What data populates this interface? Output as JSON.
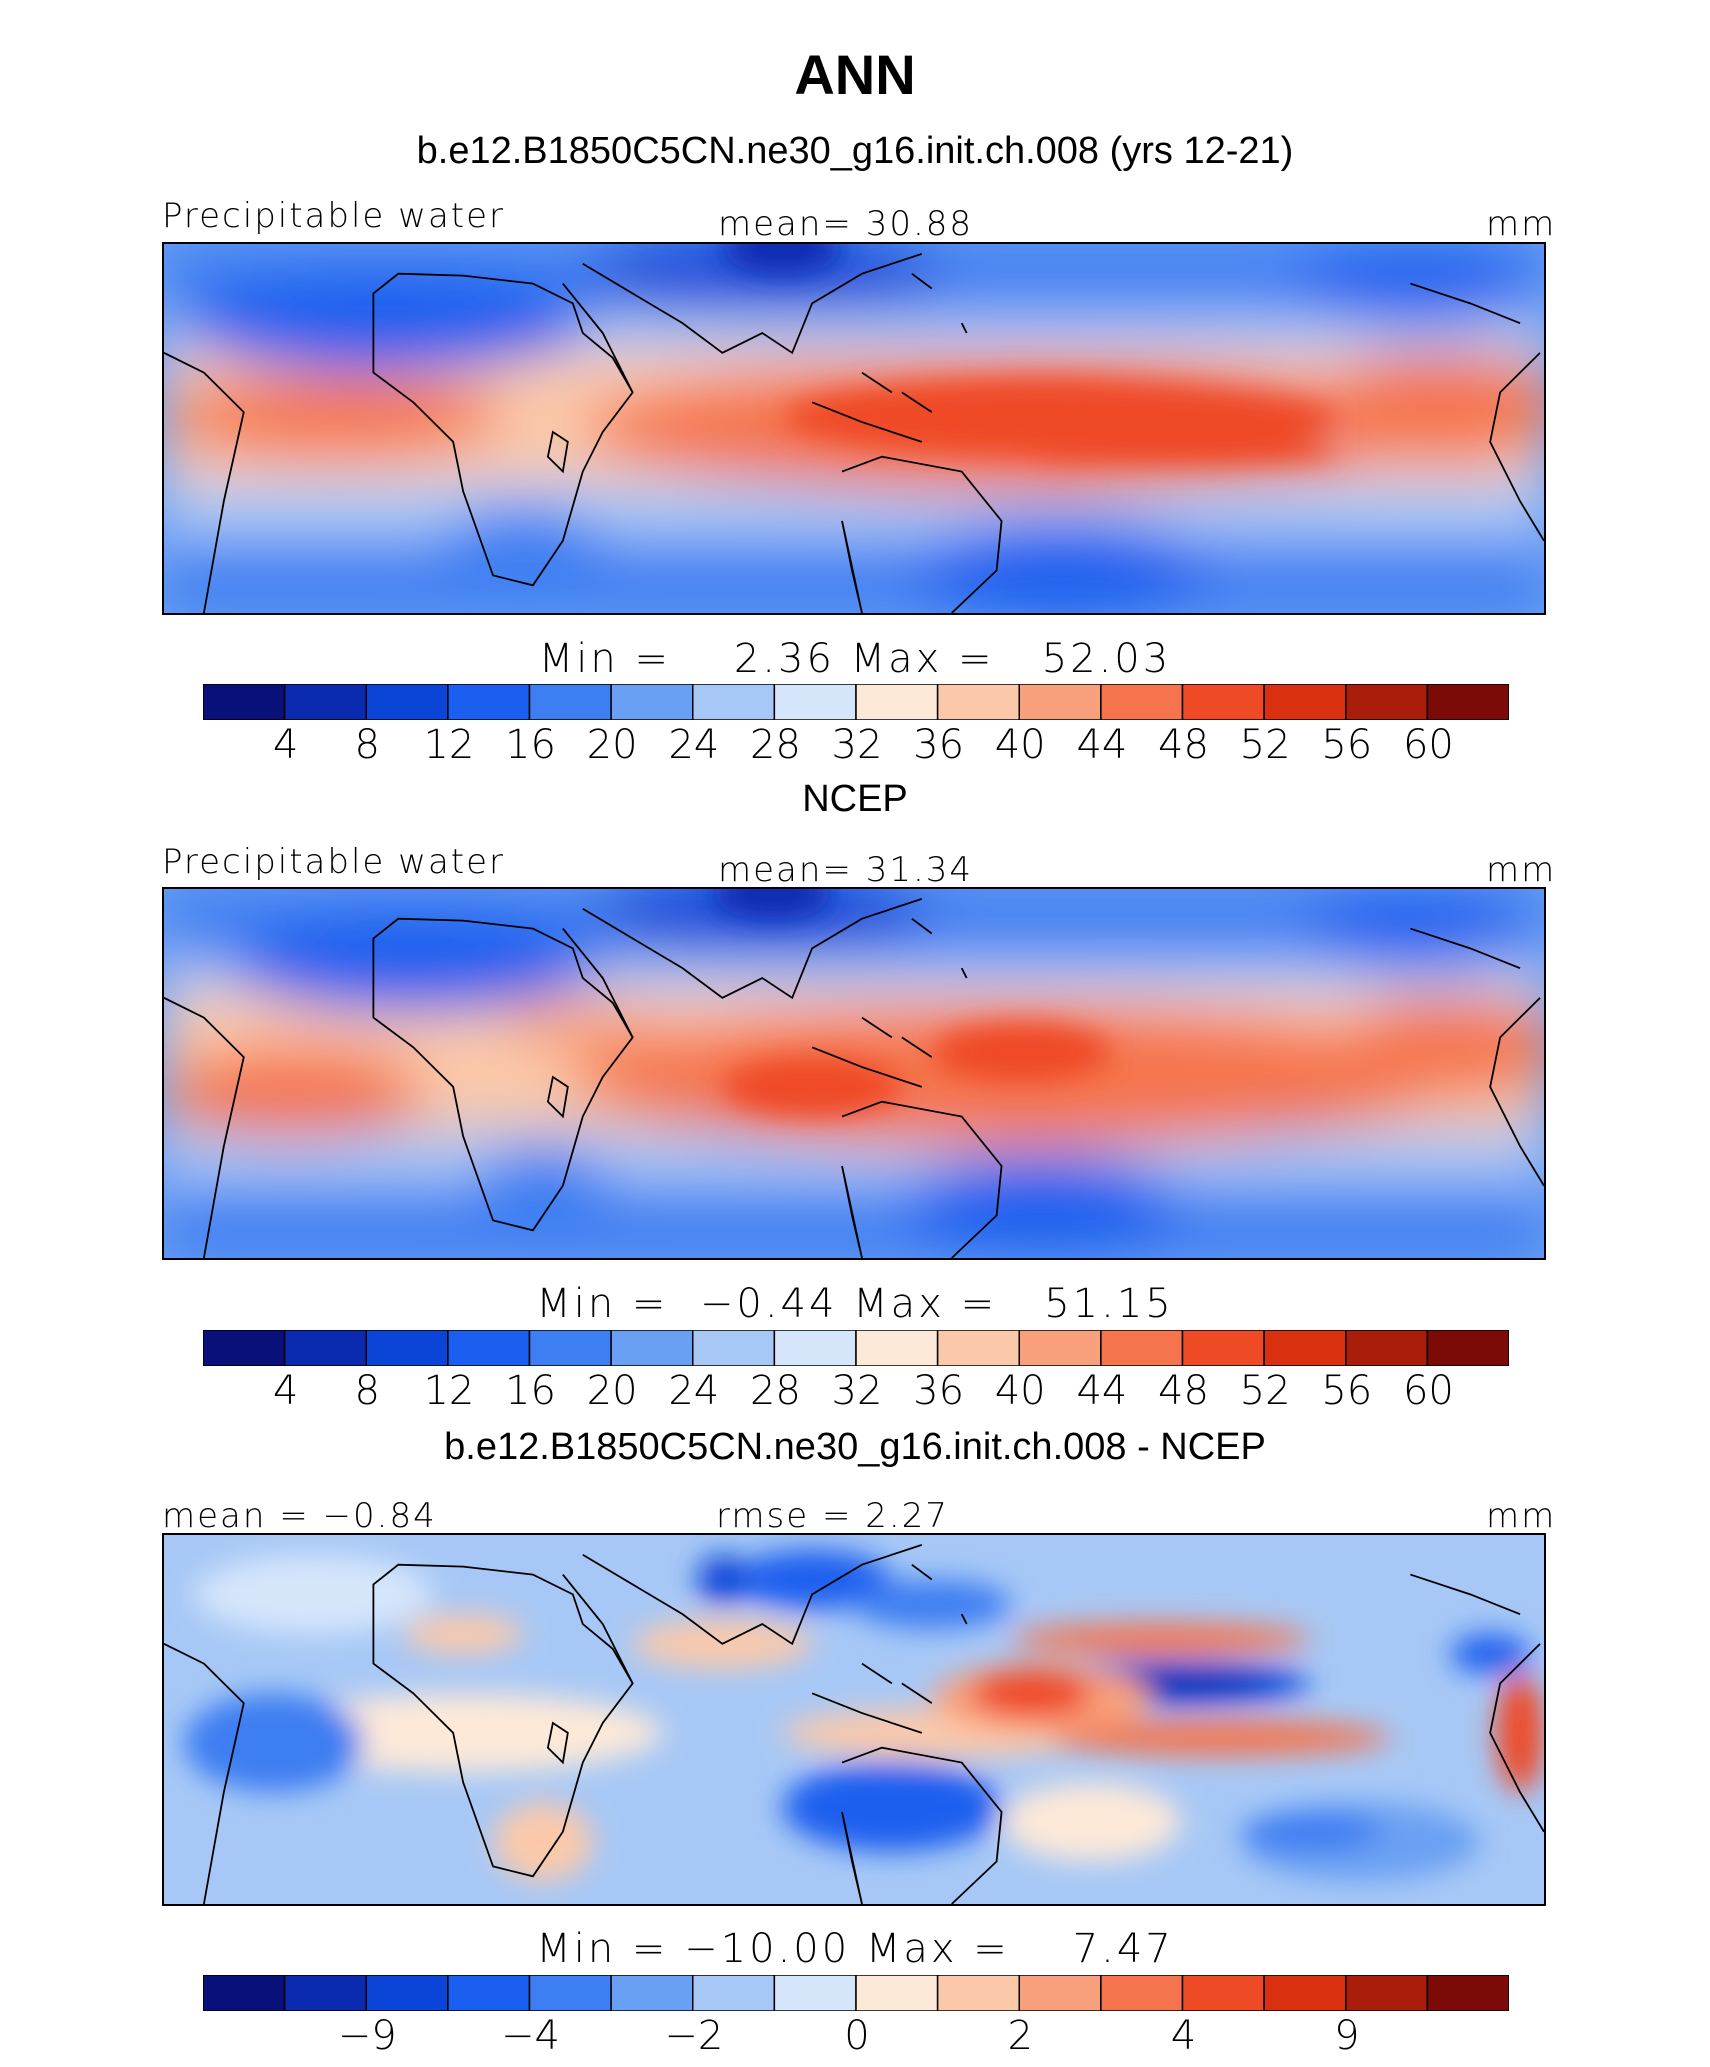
{
  "title": "ANN",
  "panels": [
    {
      "title": "b.e12.B1850C5CN.ne30_g16.init.ch.008 (yrs 12-21)",
      "left_label": "Precipitable water",
      "center_label": "mean=  30.88",
      "units": "mm",
      "minmax": "Min =    2.36 Max =   52.03",
      "colorbar_ticks": [
        "4",
        "8",
        "12",
        "16",
        "20",
        "24",
        "28",
        "32",
        "36",
        "40",
        "44",
        "48",
        "52",
        "56",
        "60"
      ]
    },
    {
      "title": "NCEP",
      "left_label": "Precipitable water",
      "center_label": "mean=  31.34",
      "units": "mm",
      "minmax": "Min =  −0.44 Max =   51.15",
      "colorbar_ticks": [
        "4",
        "8",
        "12",
        "16",
        "20",
        "24",
        "28",
        "32",
        "36",
        "40",
        "44",
        "48",
        "52",
        "56",
        "60"
      ]
    },
    {
      "title": "b.e12.B1850C5CN.ne30_g16.init.ch.008 - NCEP",
      "left_label": "mean =  −0.84",
      "center_label": "rmse =   2.27",
      "units": "mm",
      "minmax": "Min = −10.00 Max =    7.47",
      "colorbar_ticks": [
        "−9",
        "−4",
        "−2",
        "0",
        "2",
        "4",
        "9"
      ]
    }
  ],
  "colors": {
    "palette": [
      "#08107a",
      "#0a2bb0",
      "#0b45d8",
      "#1a5fef",
      "#3d7ef2",
      "#6aa0f3",
      "#a7c8f6",
      "#d5e6fb",
      "#fde9d8",
      "#fbc9aa",
      "#f8a07c",
      "#f5744e",
      "#ef4a26",
      "#d9300f",
      "#a91d0b",
      "#7b0a08"
    ]
  },
  "chart_data": [
    {
      "type": "heatmap",
      "title": "b.e12.B1850C5CN.ne30_g16.init.ch.008 (yrs 12-21)",
      "variable": "Precipitable water",
      "units": "mm",
      "mean": 30.88,
      "min": 2.36,
      "max": 52.03,
      "contour_levels": [
        4,
        8,
        12,
        16,
        20,
        24,
        28,
        32,
        36,
        40,
        44,
        48,
        52,
        56,
        60
      ]
    },
    {
      "type": "heatmap",
      "title": "NCEP",
      "variable": "Precipitable water",
      "units": "mm",
      "mean": 31.34,
      "min": -0.44,
      "max": 51.15,
      "contour_levels": [
        4,
        8,
        12,
        16,
        20,
        24,
        28,
        32,
        36,
        40,
        44,
        48,
        52,
        56,
        60
      ]
    },
    {
      "type": "heatmap",
      "title": "b.e12.B1850C5CN.ne30_g16.init.ch.008 - NCEP",
      "units": "mm",
      "mean": -0.84,
      "rmse": 2.27,
      "min": -10.0,
      "max": 7.47,
      "contour_levels": [
        -9,
        -4,
        -2,
        0,
        2,
        4,
        9
      ]
    }
  ]
}
